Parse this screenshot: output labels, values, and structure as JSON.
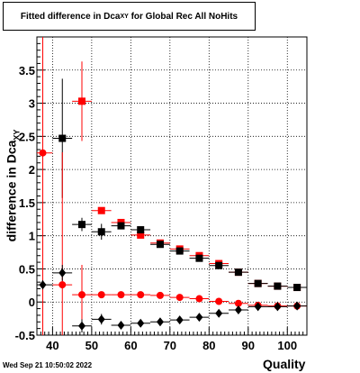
{
  "title": {
    "prefix": "Fitted difference in Dca",
    "subscript": "XY",
    "suffix": " for Global Rec All NoHits"
  },
  "timestamp": "Wed Sep 21 10:50:02 2022",
  "chart_data": {
    "type": "scatter",
    "xlabel": "Quality",
    "ylabel": {
      "main": "difference in Dca",
      "subscript": "XY"
    },
    "xlim": [
      36,
      105
    ],
    "ylim": [
      -0.5,
      4.0
    ],
    "x_ticks": [
      40,
      50,
      60,
      70,
      80,
      90,
      100
    ],
    "y_ticks": [
      -0.5,
      0,
      0.5,
      1,
      1.5,
      2,
      2.5,
      3,
      3.5
    ],
    "y_tick_labels": [
      "-0.5",
      "0",
      "0.5",
      "1",
      "1.5",
      "2",
      "2.5",
      "3",
      "3.5"
    ],
    "grid": true,
    "series": [
      {
        "marker": "square",
        "color": "#ff0000",
        "x": [
          47.5,
          52.5,
          57.5,
          62.5,
          67.5,
          72.5,
          77.5,
          82.5,
          87.5,
          92.5,
          97.5,
          102.5
        ],
        "y": [
          3.03,
          1.38,
          1.2,
          1.01,
          0.89,
          0.8,
          0.7,
          0.58,
          0.45,
          0.28,
          0.24,
          0.22
        ],
        "yerr": [
          0.6,
          0.04,
          0.03,
          0.03,
          0.02,
          0.02,
          0.02,
          0.02,
          0.02,
          0.02,
          0.02,
          0.02
        ]
      },
      {
        "marker": "square",
        "color": "#000000",
        "x": [
          42.5,
          47.5,
          52.5,
          57.5,
          62.5,
          67.5,
          72.5,
          77.5,
          82.5,
          87.5,
          92.5,
          97.5,
          102.5
        ],
        "y": [
          2.47,
          1.17,
          1.06,
          1.15,
          1.09,
          0.87,
          0.77,
          0.66,
          0.55,
          0.45,
          0.28,
          0.24,
          0.22
        ],
        "yerr": [
          0.9,
          0.1,
          0.12,
          0.05,
          0.03,
          0.02,
          0.02,
          0.02,
          0.02,
          0.02,
          0.02,
          0.02,
          0.02
        ]
      },
      {
        "marker": "circle",
        "color": "#ff0000",
        "x": [
          37.5,
          42.5,
          47.5,
          52.5,
          57.5,
          62.5,
          67.5,
          72.5,
          77.5,
          82.5,
          87.5,
          92.5,
          97.5,
          102.5
        ],
        "y": [
          2.25,
          0.26,
          0.11,
          0.11,
          0.11,
          0.11,
          0.1,
          0.07,
          0.05,
          0.01,
          -0.02,
          -0.05,
          -0.06,
          -0.06
        ],
        "yerr": [
          2.8,
          2.0,
          0.45,
          0.03,
          0.02,
          0.02,
          0.02,
          0.02,
          0.02,
          0.02,
          0.02,
          0.02,
          0.02,
          0.02
        ]
      },
      {
        "marker": "diamond",
        "color": "#000000",
        "x": [
          37.5,
          42.5,
          47.5,
          52.5,
          57.5,
          62.5,
          67.5,
          72.5,
          77.5,
          82.5,
          87.5,
          92.5,
          97.5,
          102.5
        ],
        "y": [
          0.26,
          0.44,
          -0.36,
          -0.26,
          -0.35,
          -0.32,
          -0.3,
          -0.27,
          -0.23,
          -0.17,
          -0.12,
          -0.07,
          -0.07,
          -0.06
        ],
        "yerr": [
          0.07,
          0.12,
          0.1,
          0.08,
          0.04,
          0.03,
          0.03,
          0.02,
          0.02,
          0.02,
          0.02,
          0.02,
          0.02,
          0.02
        ]
      }
    ]
  }
}
